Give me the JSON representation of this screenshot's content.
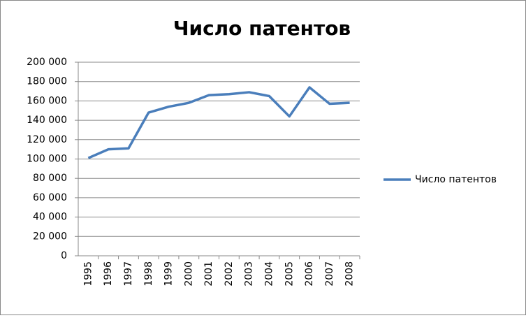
{
  "chart_data": {
    "type": "line",
    "title": "Число патентов",
    "categories": [
      "1995",
      "1996",
      "1997",
      "1998",
      "1999",
      "2000",
      "2001",
      "2002",
      "2003",
      "2004",
      "2005",
      "2006",
      "2007",
      "2008"
    ],
    "series": [
      {
        "name": "Число патентов",
        "color": "#4a7ebb",
        "values": [
          101000,
          110000,
          111000,
          148000,
          154000,
          158000,
          166000,
          167000,
          169000,
          165000,
          144000,
          174000,
          157000,
          158000
        ]
      }
    ],
    "ylim": [
      0,
      200000
    ],
    "yticks": [
      {
        "value": 0,
        "label": "0"
      },
      {
        "value": 20000,
        "label": "20 000"
      },
      {
        "value": 40000,
        "label": "40 000"
      },
      {
        "value": 60000,
        "label": "60 000"
      },
      {
        "value": 80000,
        "label": "80 000"
      },
      {
        "value": 100000,
        "label": "100 000"
      },
      {
        "value": 120000,
        "label": "120 000"
      },
      {
        "value": 140000,
        "label": "140 000"
      },
      {
        "value": 160000,
        "label": "160 000"
      },
      {
        "value": 180000,
        "label": "180 000"
      },
      {
        "value": 200000,
        "label": "200 000"
      }
    ],
    "grid": true,
    "legend": "right"
  }
}
